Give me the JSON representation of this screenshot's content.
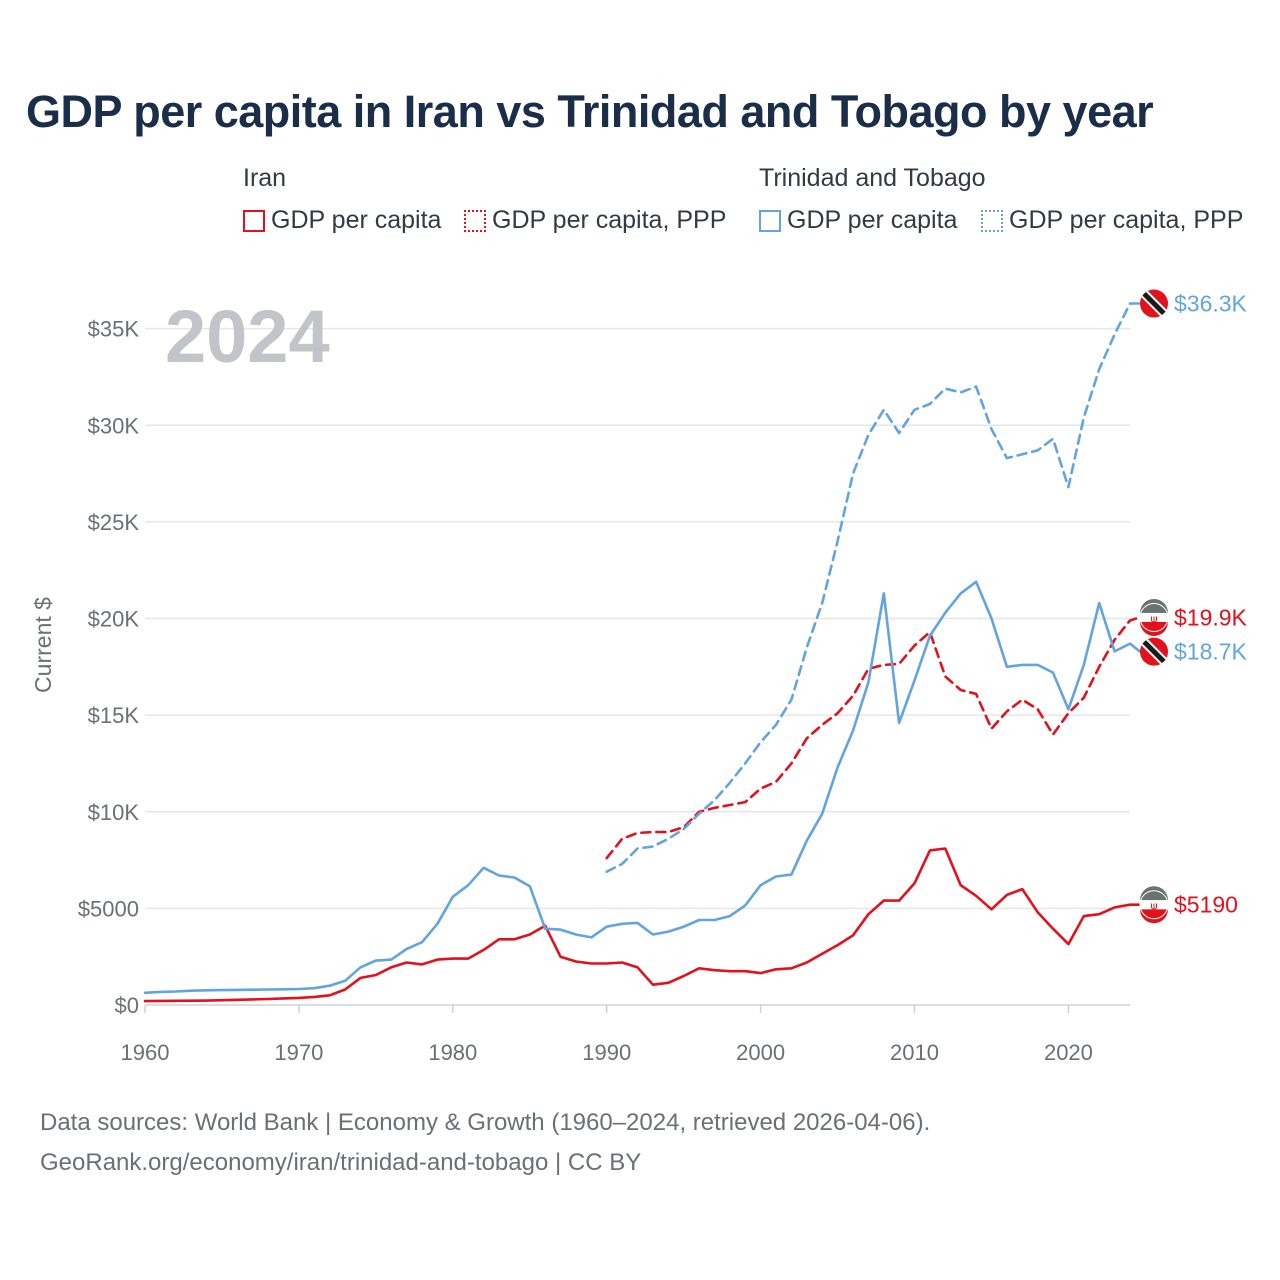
{
  "title": "GDP per capita in Iran vs Trinidad and Tobago by year",
  "legend": {
    "groups": [
      {
        "name": "Iran",
        "items": [
          {
            "label": "GDP per capita",
            "color": "#e3111b",
            "style": "solid"
          },
          {
            "label": "GDP per capita, PPP",
            "color": "#e3111b",
            "style": "dotted"
          }
        ]
      },
      {
        "name": "Trinidad and Tobago",
        "items": [
          {
            "label": "GDP per capita",
            "color": "#62a4e0",
            "style": "solid"
          },
          {
            "label": "GDP per capita, PPP",
            "color": "#62a4e0",
            "style": "dotted"
          }
        ]
      }
    ]
  },
  "year_watermark": "2024",
  "footer": {
    "line1": "Data sources: World Bank | Economy & Growth (1960–2024, retrieved 2026-04-06).",
    "line2": "GeoRank.org/economy/iran/trinidad-and-tobago | CC BY"
  },
  "colors": {
    "iran": "#e3111b",
    "tt": "#62a4e0",
    "grid": "#e6e6e6",
    "axis_text": "#6b6f76"
  },
  "chart_data": {
    "type": "line",
    "title": "GDP per capita in Iran vs Trinidad and Tobago by year",
    "xlabel": "",
    "ylabel": "Current $",
    "xlim": [
      1960,
      2024
    ],
    "ylim": [
      0,
      37000
    ],
    "x_ticks": [
      1960,
      1970,
      1980,
      1990,
      2000,
      2010,
      2020
    ],
    "y_ticks": [
      {
        "value": 0,
        "label": "$0"
      },
      {
        "value": 5000,
        "label": "$5000"
      },
      {
        "value": 10000,
        "label": "$10K"
      },
      {
        "value": 15000,
        "label": "$15K"
      },
      {
        "value": 20000,
        "label": "$20K"
      },
      {
        "value": 25000,
        "label": "$25K"
      },
      {
        "value": 30000,
        "label": "$30K"
      },
      {
        "value": 35000,
        "label": "$35K"
      }
    ],
    "series": [
      {
        "id": "iran_gdp",
        "name": "Iran — GDP per capita",
        "country": "iran",
        "dashed": false,
        "end_label": "$5190",
        "x": [
          1960,
          1961,
          1962,
          1963,
          1964,
          1965,
          1966,
          1967,
          1968,
          1969,
          1970,
          1971,
          1972,
          1973,
          1974,
          1975,
          1976,
          1977,
          1978,
          1979,
          1980,
          1981,
          1982,
          1983,
          1984,
          1985,
          1986,
          1987,
          1988,
          1989,
          1990,
          1991,
          1992,
          1993,
          1994,
          1995,
          1996,
          1997,
          1998,
          1999,
          2000,
          2001,
          2002,
          2003,
          2004,
          2005,
          2006,
          2007,
          2008,
          2009,
          2010,
          2011,
          2012,
          2013,
          2014,
          2015,
          2016,
          2017,
          2018,
          2019,
          2020,
          2021,
          2022,
          2023,
          2024
        ],
        "values": [
          200,
          210,
          215,
          220,
          230,
          250,
          270,
          290,
          310,
          340,
          370,
          420,
          500,
          800,
          1400,
          1550,
          1950,
          2200,
          2100,
          2350,
          2400,
          2400,
          2850,
          3400,
          3400,
          3650,
          4100,
          2500,
          2250,
          2150,
          2150,
          2200,
          1950,
          1050,
          1150,
          1500,
          1900,
          1800,
          1750,
          1750,
          1650,
          1850,
          1900,
          2200,
          2650,
          3100,
          3600,
          4700,
          5400,
          5400,
          6300,
          8000,
          8100,
          6200,
          5650,
          4950,
          5700,
          6000,
          4800,
          3950,
          3150,
          4600,
          4700,
          5050,
          5190
        ]
      },
      {
        "id": "iran_ppp",
        "name": "Iran — GDP per capita, PPP",
        "country": "iran",
        "dashed": true,
        "end_label": "$19.9K",
        "x": [
          1990,
          1991,
          1992,
          1993,
          1994,
          1995,
          1996,
          1997,
          1998,
          1999,
          2000,
          2001,
          2002,
          2003,
          2004,
          2005,
          2006,
          2007,
          2008,
          2009,
          2010,
          2011,
          2012,
          2013,
          2014,
          2015,
          2016,
          2017,
          2018,
          2019,
          2020,
          2021,
          2022,
          2023,
          2024
        ],
        "values": [
          7600,
          8600,
          8900,
          8950,
          8950,
          9200,
          10000,
          10200,
          10350,
          10500,
          11200,
          11550,
          12500,
          13800,
          14500,
          15100,
          16000,
          17400,
          17600,
          17650,
          18600,
          19300,
          17000,
          16300,
          16100,
          14300,
          15200,
          15800,
          15300,
          14000,
          15100,
          15900,
          17500,
          18900,
          19900
        ]
      },
      {
        "id": "tt_gdp",
        "name": "Trinidad and Tobago — GDP per capita",
        "country": "tt",
        "dashed": false,
        "end_label": "$18.7K",
        "x": [
          1960,
          1961,
          1962,
          1963,
          1964,
          1965,
          1966,
          1967,
          1968,
          1969,
          1970,
          1971,
          1972,
          1973,
          1974,
          1975,
          1976,
          1977,
          1978,
          1979,
          1980,
          1981,
          1982,
          1983,
          1984,
          1985,
          1986,
          1987,
          1988,
          1989,
          1990,
          1991,
          1992,
          1993,
          1994,
          1995,
          1996,
          1997,
          1998,
          1999,
          2000,
          2001,
          2002,
          2003,
          2004,
          2005,
          2006,
          2007,
          2008,
          2009,
          2010,
          2011,
          2012,
          2013,
          2014,
          2015,
          2016,
          2017,
          2018,
          2019,
          2020,
          2021,
          2022,
          2023,
          2024
        ],
        "values": [
          630,
          680,
          700,
          740,
          760,
          770,
          780,
          790,
          800,
          810,
          830,
          870,
          1000,
          1250,
          1950,
          2300,
          2350,
          2900,
          3250,
          4200,
          5600,
          6200,
          7100,
          6700,
          6600,
          6150,
          3950,
          3900,
          3650,
          3500,
          4050,
          4200,
          4250,
          3650,
          3800,
          4050,
          4400,
          4400,
          4600,
          5150,
          6200,
          6650,
          6750,
          8500,
          9900,
          12300,
          14200,
          16700,
          21300,
          14600,
          16800,
          19100,
          20300,
          21300,
          21900,
          20000,
          17500,
          17600,
          17600,
          17200,
          15300,
          17600,
          20800,
          18300,
          18700
        ]
      },
      {
        "id": "tt_ppp",
        "name": "Trinidad and Tobago — GDP per capita, PPP",
        "country": "tt",
        "dashed": true,
        "end_label": "$36.3K",
        "x": [
          1990,
          1991,
          1992,
          1993,
          1994,
          1995,
          1996,
          1997,
          1998,
          1999,
          2000,
          2001,
          2002,
          2003,
          2004,
          2005,
          2006,
          2007,
          2008,
          2009,
          2010,
          2011,
          2012,
          2013,
          2014,
          2015,
          2016,
          2017,
          2018,
          2019,
          2020,
          2021,
          2022,
          2023,
          2024
        ],
        "values": [
          6900,
          7300,
          8100,
          8200,
          8600,
          9100,
          9900,
          10600,
          11500,
          12500,
          13600,
          14500,
          15800,
          18500,
          20800,
          24000,
          27500,
          29500,
          30800,
          29600,
          30800,
          31100,
          31900,
          31700,
          32000,
          29800,
          28300,
          28500,
          28700,
          29300,
          26800,
          30400,
          32900,
          34700,
          36300
        ]
      }
    ]
  }
}
